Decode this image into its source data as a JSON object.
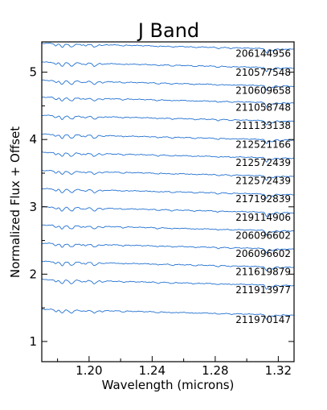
{
  "chart_data": {
    "type": "line",
    "title": "J Band",
    "xlabel": "Wavelength (microns)",
    "ylabel": "Normalized Flux + Offset",
    "xlim": [
      1.17,
      1.33
    ],
    "ylim": [
      0.7,
      5.45
    ],
    "x_ticks": [
      "1.20",
      "1.24",
      "1.28",
      "1.32"
    ],
    "y_ticks": [
      "1",
      "2",
      "3",
      "4",
      "5"
    ],
    "grid": false,
    "legend": "none",
    "line_color": "#1f6fd1",
    "series": [
      {
        "name": "206144956",
        "offset": 5.25
      },
      {
        "name": "210577548",
        "offset": 4.97
      },
      {
        "name": "210609658",
        "offset": 4.7
      },
      {
        "name": "211058748",
        "offset": 4.45
      },
      {
        "name": "211133138",
        "offset": 4.18
      },
      {
        "name": "212521166",
        "offset": 3.9
      },
      {
        "name": "212572439",
        "offset": 3.63
      },
      {
        "name": "212572439",
        "offset": 3.36
      },
      {
        "name": "217192839",
        "offset": 3.09
      },
      {
        "name": "219114906",
        "offset": 2.82
      },
      {
        "name": "206096602",
        "offset": 2.55
      },
      {
        "name": "206096602",
        "offset": 2.28
      },
      {
        "name": "211619879",
        "offset": 2.01
      },
      {
        "name": "211913977",
        "offset": 1.74
      },
      {
        "name": "211970147",
        "offset": 1.3
      }
    ]
  }
}
